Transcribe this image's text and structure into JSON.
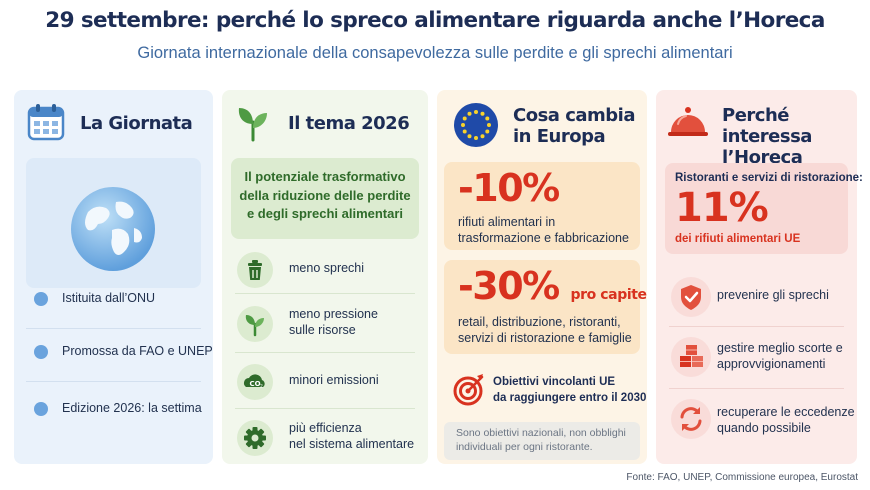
{
  "header": {
    "title": "29 settembre: perché lo spreco alimentare riguarda anche l’Horeca",
    "subtitle": "Giornata internazionale della consapevolezza sulle perdite e gli sprechi alimentari"
  },
  "columns": {
    "giornata": {
      "title": "La Giornata",
      "icon": "calendar-icon",
      "image": "globe-icon",
      "items": [
        "Istituita dall’ONU",
        "Promossa da FAO e UNEP",
        "Edizione 2026: la settima"
      ]
    },
    "tema": {
      "title": "Il tema 2026",
      "icon": "leaf-sprout-icon",
      "highlight_lines": [
        "Il potenziale trasformativo",
        "della riduzione delle perdite",
        "e degli sprechi alimentari"
      ],
      "items": [
        {
          "icon": "trash-icon",
          "lines": [
            "meno sprechi"
          ]
        },
        {
          "icon": "sprout-icon",
          "lines": [
            "meno pressione",
            "sulle risorse"
          ]
        },
        {
          "icon": "co2-icon",
          "lines": [
            "minori emissioni"
          ]
        },
        {
          "icon": "gear-icon",
          "lines": [
            "più efficienza",
            "nel sistema alimentare"
          ]
        }
      ]
    },
    "europa": {
      "title_lines": [
        "Cosa cambia",
        "in Europa"
      ],
      "icon": "eu-flag-icon",
      "stat1": {
        "value": "-10%",
        "lines": [
          "rifiuti alimentari in",
          "trasformazione e fabbricazione"
        ]
      },
      "stat2": {
        "value": "-30%",
        "suffix": "pro capite",
        "lines": [
          "retail, distribuzione, ristoranti,",
          "servizi di ristorazione e famiglie"
        ]
      },
      "goal_icon": "target-icon",
      "goal_lines": [
        "Obiettivi vincolanti UE",
        "da raggiungere entro il 2030"
      ],
      "note_lines": [
        "Sono obiettivi nazionali, non obblighi",
        "individuali per ogni ristorante."
      ]
    },
    "horeca": {
      "title_lines": [
        "Perché interessa",
        "l’Horeca"
      ],
      "icon": "food-cloche-icon",
      "lead": "Ristoranti e servizi di ristorazione:",
      "value": "11%",
      "sub": "dei rifiuti alimentari UE",
      "items": [
        {
          "icon": "shield-check-icon",
          "lines": [
            "prevenire gli sprechi"
          ]
        },
        {
          "icon": "boxes-icon",
          "lines": [
            "gestire meglio scorte e",
            "approvvigionamenti"
          ]
        },
        {
          "icon": "recycle-arrows-icon",
          "lines": [
            "recuperare le eccedenze",
            "quando possibile"
          ]
        }
      ]
    }
  },
  "source": "Fonte: FAO, UNEP, Commissione europea, Eurostat",
  "colors": {
    "title": "#1d2d55",
    "subtitle": "#3f6aa0",
    "accent_red": "#d8321f",
    "accent_green": "#2f6b2a",
    "blue_dot": "#6aa3dd"
  }
}
